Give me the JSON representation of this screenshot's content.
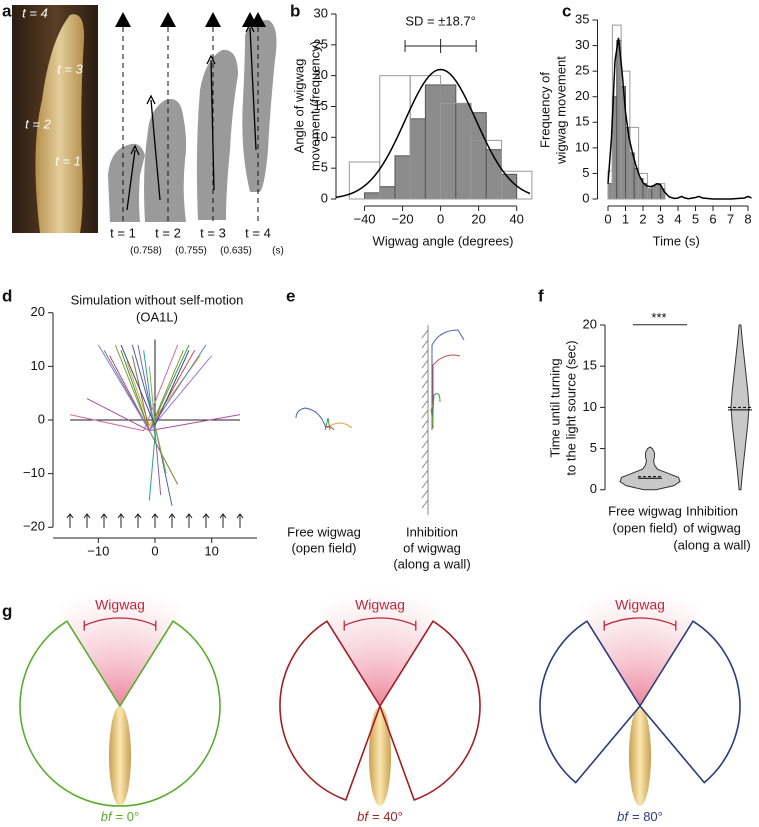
{
  "panels": {
    "a": {
      "panel": "a",
      "photo_labels": [
        "t = 4",
        "t = 3",
        "t = 2",
        "t = 1"
      ],
      "frames": [
        "t = 1",
        "t = 2",
        "t = 3",
        "t = 4"
      ],
      "intervals": [
        "(0.758)",
        "(0.755)",
        "(0.635)"
      ],
      "unit": "(s)"
    },
    "e": {
      "panel": "e",
      "labels": [
        [
          "Free wigwag",
          "(open field)"
        ],
        [
          "Inhibition",
          "of wigwag",
          "(along a wall)"
        ]
      ]
    },
    "g": {
      "panel": "g",
      "items": [
        {
          "caption": "Wigwag",
          "var": "bf",
          "label": "= 0°",
          "bf": 0,
          "color": "#5aab2c"
        },
        {
          "caption": "Wigwag",
          "var": "bf",
          "label": "= 40°",
          "bf": 40,
          "color": "#a31d24"
        },
        {
          "caption": "Wigwag",
          "var": "bf",
          "label": "= 80°",
          "bf": 80,
          "color": "#2e3a80"
        }
      ]
    }
  },
  "chart_data": [
    {
      "type": "histogram",
      "panel": "b",
      "annotation": "SD = ±18.7°",
      "ylabel": [
        "Angle of wigwag",
        "movement (frequency)"
      ],
      "xlabel": "Wigwag angle (degrees)",
      "xlim": [
        -55,
        47
      ],
      "ylim": [
        0,
        30
      ],
      "xticks": [
        {
          "value": -40,
          "label": "−40"
        },
        {
          "value": -20,
          "label": "−20"
        },
        0,
        20,
        40
      ],
      "yticks": [
        0,
        5,
        10,
        15,
        20,
        25,
        30
      ],
      "series": [
        {
          "fill": "#8c8c8c",
          "stroke": "#555555",
          "bins": [
            -40,
            -32,
            -24,
            -16,
            -8,
            0,
            8,
            16,
            24,
            32,
            40
          ],
          "values": [
            1,
            2,
            7,
            13,
            18.5,
            18.5,
            15.5,
            14,
            8,
            4
          ]
        },
        {
          "fill": "none",
          "stroke": "#9a9a9a",
          "bins": [
            -48,
            -32,
            -16,
            0,
            16,
            32,
            48
          ],
          "values": [
            6,
            20,
            20,
            15.5,
            9.5,
            4.5
          ]
        }
      ],
      "fit": {
        "mean": 0,
        "sd": 18.7,
        "peak": 21
      }
    },
    {
      "type": "histogram",
      "panel": "c",
      "ylabel": [
        "Frequency of",
        "wigwag movement"
      ],
      "xlabel": "Time (s)",
      "xlim": [
        -0.6,
        8.4
      ],
      "ylim": [
        0,
        35
      ],
      "xticks": [
        0,
        1,
        2,
        3,
        4,
        5,
        6,
        7,
        8
      ],
      "yticks": [
        0,
        5,
        10,
        15,
        20,
        25,
        30,
        35
      ],
      "series": [
        {
          "fill": "#8c8c8c",
          "stroke": "#555555",
          "bins": [
            0,
            0.25,
            0.5,
            0.75,
            1,
            1.25,
            1.5,
            1.75,
            2,
            2.25,
            2.5,
            2.75,
            3,
            3.25
          ],
          "values": [
            3,
            20,
            31,
            22,
            14,
            9,
            6,
            4,
            3,
            2,
            2.5,
            3,
            2
          ]
        },
        {
          "fill": "none",
          "stroke": "#9a9a9a",
          "bins": [
            0,
            0.25,
            0.75,
            1.25,
            1.75,
            2.25,
            2.75,
            3.25
          ],
          "values": [
            5.5,
            34,
            25,
            14,
            5,
            2,
            3
          ]
        }
      ],
      "fit": {
        "x": [
          0,
          0.2,
          0.4,
          0.6,
          0.8,
          1,
          1.2,
          1.4,
          1.6,
          1.8,
          2,
          2.2,
          2.4,
          2.6,
          2.8,
          3,
          3.2,
          3.5,
          3.8,
          4,
          4.2,
          4.4,
          4.6,
          5,
          5.2,
          5.4,
          6,
          7,
          7.8,
          8,
          8.2
        ],
        "y": [
          3,
          12,
          27,
          31.5,
          25,
          17,
          12,
          9,
          6.5,
          4.5,
          3.2,
          2.6,
          2.4,
          2.6,
          3,
          2.8,
          1.5,
          0.4,
          0.1,
          0.2,
          0.5,
          0.2,
          0.05,
          0.3,
          0.5,
          0.2,
          0,
          0,
          0.2,
          0.5,
          0.2
        ]
      }
    },
    {
      "type": "line",
      "panel": "d",
      "title": [
        "Simulation without self-motion",
        "(OA1L)"
      ],
      "xlim": [
        -18,
        18
      ],
      "ylim": [
        -22,
        22
      ],
      "xticks": [
        {
          "value": -10,
          "label": "−10"
        },
        0,
        10
      ],
      "yticks": [
        {
          "value": -20,
          "label": "−20"
        },
        {
          "value": -10,
          "label": "−10"
        },
        0,
        10,
        20
      ],
      "reference_lines": {
        "x_span": [
          -15,
          15
        ],
        "y_span": [
          0,
          15
        ]
      },
      "arrows": {
        "x": [
          -15,
          -12,
          -9,
          -6,
          -3,
          0,
          3,
          6,
          9,
          12,
          15
        ],
        "y": [
          -19,
          -19,
          -19,
          -19,
          -19,
          -19,
          -19,
          -19,
          -19,
          -19,
          -19
        ]
      },
      "series": [
        {
          "color": "#4a5fa8",
          "x": [
            -4,
            0,
            3
          ],
          "y": [
            14,
            -1,
            -16
          ]
        },
        {
          "color": "#3a9a4a",
          "x": [
            -6,
            -1,
            6
          ],
          "y": [
            13,
            -2,
            14
          ]
        },
        {
          "color": "#c0504d",
          "x": [
            -8,
            -1,
            7
          ],
          "y": [
            12,
            -2,
            13
          ]
        },
        {
          "color": "#8064a2",
          "x": [
            -3,
            0,
            1
          ],
          "y": [
            14,
            -2,
            -14
          ]
        },
        {
          "color": "#e0a030",
          "x": [
            -5,
            -1,
            8
          ],
          "y": [
            11,
            -1,
            12
          ]
        },
        {
          "color": "#2aa198",
          "x": [
            -2,
            0,
            -1
          ],
          "y": [
            13,
            -3,
            -15
          ]
        },
        {
          "color": "#d46a9a",
          "x": [
            -15,
            -2,
            4
          ],
          "y": [
            1,
            -2,
            14
          ]
        },
        {
          "color": "#8a9a3a",
          "x": [
            -7,
            -1,
            5
          ],
          "y": [
            14,
            -2,
            13
          ]
        },
        {
          "color": "#5a7fbf",
          "x": [
            -9,
            -1,
            9
          ],
          "y": [
            13,
            -2,
            14
          ]
        },
        {
          "color": "#b04a9a",
          "x": [
            -12,
            -1,
            15
          ],
          "y": [
            4,
            -2,
            1
          ]
        },
        {
          "color": "#9a6a3a",
          "x": [
            -4,
            -1,
            4
          ],
          "y": [
            12,
            -2,
            -12
          ]
        },
        {
          "color": "#9a7ac8",
          "x": [
            -10,
            -1,
            10
          ],
          "y": [
            14,
            -2,
            12
          ]
        },
        {
          "color": "#7ab84a",
          "x": [
            -1,
            0,
            2
          ],
          "y": [
            10,
            -1,
            -10
          ]
        },
        {
          "color": "#3a4a8a",
          "x": [
            -6,
            0,
            6
          ],
          "y": [
            14,
            -1,
            13
          ]
        }
      ]
    },
    {
      "type": "violin",
      "panel": "f",
      "annotation": "***",
      "ylabel": [
        "Time until turning",
        "to the light source (sec)"
      ],
      "categories": [
        [
          "Free wigwag",
          "(open field)"
        ],
        [
          "Inhibition",
          "of wigwag",
          "(along a wall)"
        ]
      ],
      "ylim": [
        -1,
        21
      ],
      "yticks": [
        0,
        5,
        10,
        15,
        20
      ],
      "violins": [
        {
          "y": [
            0,
            0.5,
            1,
            1.5,
            2,
            2.5,
            3,
            3.5,
            4,
            4.5,
            5,
            5.2
          ],
          "w": [
            0.2,
            0.8,
            1,
            0.95,
            0.6,
            0.25,
            0.15,
            0.12,
            0.15,
            0.15,
            0.08,
            0
          ],
          "mean": 1.6,
          "median": 1.4
        },
        {
          "y": [
            0,
            2,
            4,
            6,
            8,
            10,
            12,
            14,
            16,
            18,
            20
          ],
          "w": [
            0.03,
            0.08,
            0.14,
            0.2,
            0.26,
            0.3,
            0.26,
            0.2,
            0.14,
            0.08,
            0.03
          ],
          "mean": 10,
          "median": 9.7
        }
      ]
    }
  ]
}
